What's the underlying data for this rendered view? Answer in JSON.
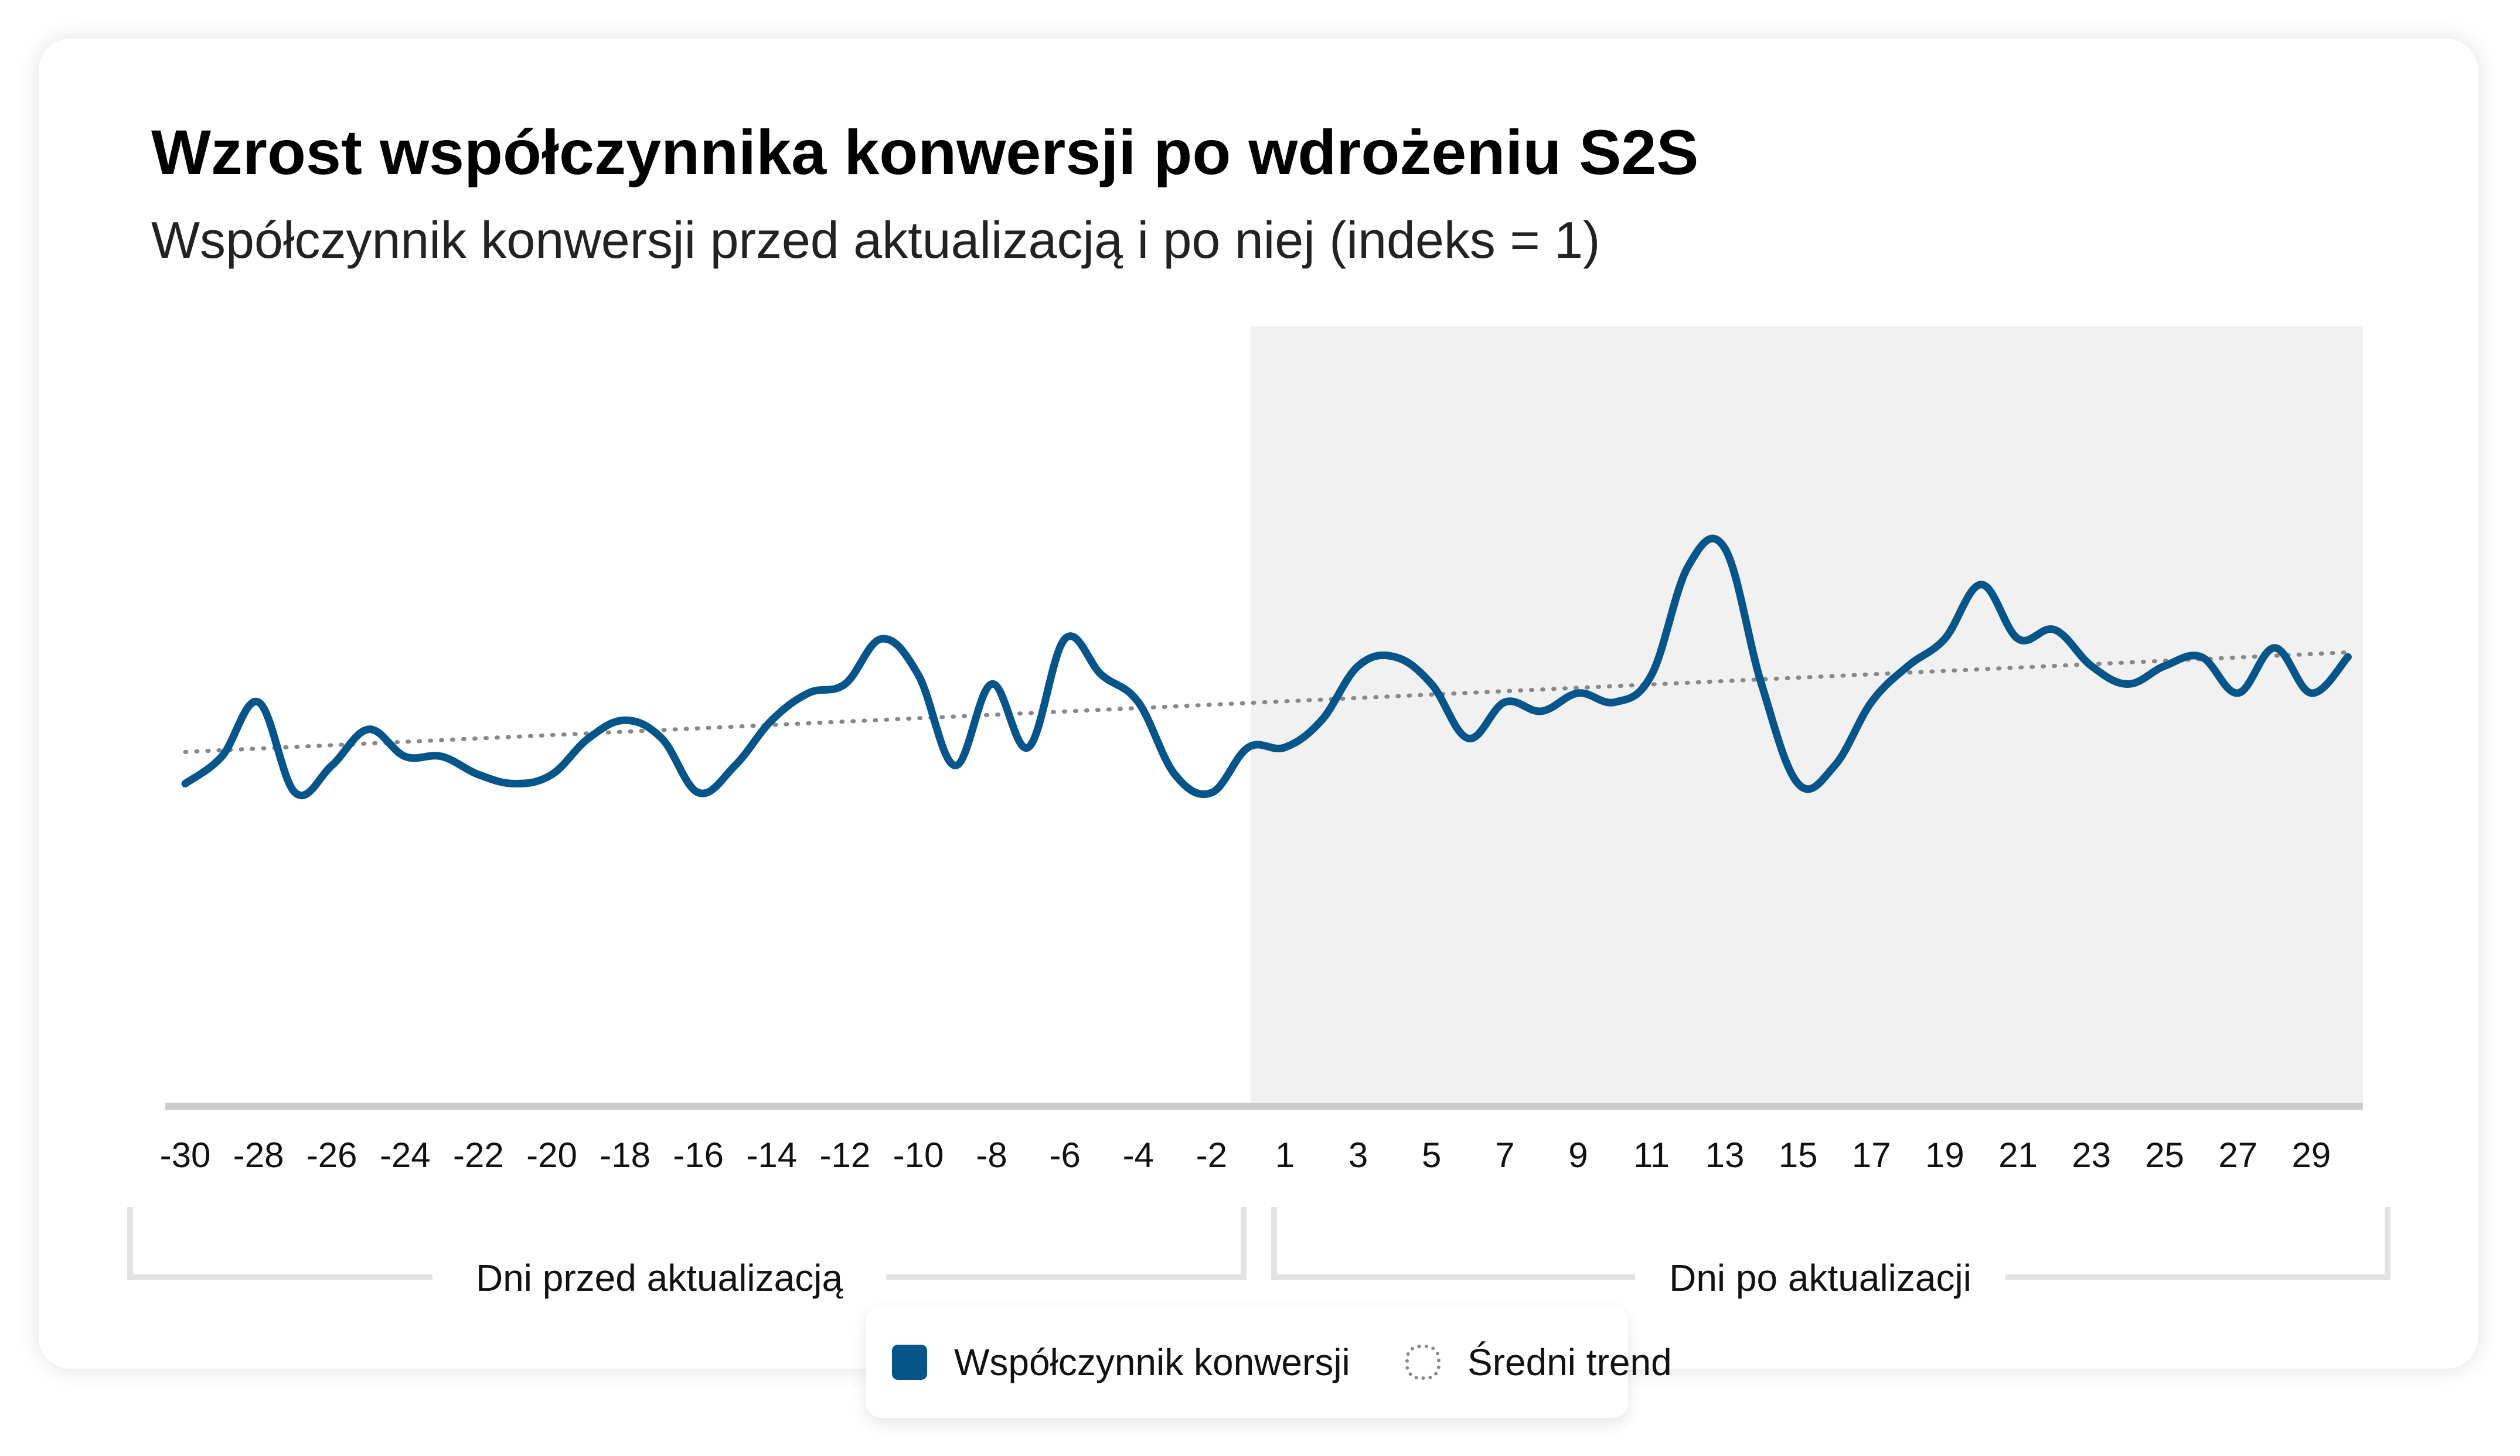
{
  "title": "Wzrost współczynnika konwersji po wdrożeniu S2S",
  "subtitle": "Współczynnik konwersji przed aktualizacją i po niej (indeks = 1)",
  "colors": {
    "line": "#05558a",
    "trend": "#888888",
    "shade": "#f1f1f1",
    "axis": "#cccccc",
    "bracket": "#e3e3e3"
  },
  "groups": {
    "before_label": "Dni przed aktualizacją",
    "after_label": "Dni po aktualizacji"
  },
  "legend": {
    "series_label": "Współczynnik konwersji",
    "trend_label": "Średni trend"
  },
  "chart_data": {
    "type": "line",
    "title": "Wzrost współczynnika konwersji po wdrożeniu S2S",
    "subtitle": "Współczynnik konwersji przed aktualizacją i po niej (indeks = 1)",
    "x": [
      -30,
      -29,
      -28,
      -27,
      -26,
      -25,
      -24,
      -23,
      -22,
      -21,
      -20,
      -19,
      -18,
      -17,
      -16,
      -15,
      -14,
      -13,
      -12,
      -11,
      -10,
      -9,
      -8,
      -7,
      -6,
      -5,
      -4,
      -3,
      -2,
      -1,
      1,
      2,
      3,
      4,
      5,
      6,
      7,
      8,
      9,
      10,
      11,
      12,
      13,
      14,
      15,
      16,
      17,
      18,
      19,
      20,
      21,
      22,
      23,
      24,
      25,
      26,
      27,
      28,
      29,
      30
    ],
    "x_tick_labels": [
      "-30",
      "-28",
      "-26",
      "-24",
      "-22",
      "-20",
      "-18",
      "-16",
      "-14",
      "-12",
      "-10",
      "-8",
      "-6",
      "-4",
      "-2",
      "1",
      "3",
      "5",
      "7",
      "9",
      "11",
      "13",
      "15",
      "17",
      "19",
      "21",
      "23",
      "25",
      "27",
      "29"
    ],
    "shaded_region": "dni 1–30 (po aktualizacji)",
    "grid": false,
    "legend_position": "bottom-center",
    "series": [
      {
        "name": "Współczynnik konwersji",
        "values": [
          0.99,
          1.02,
          1.08,
          0.98,
          1.01,
          1.05,
          1.02,
          1.02,
          1.0,
          0.99,
          1.0,
          1.04,
          1.06,
          1.04,
          0.98,
          1.01,
          1.06,
          1.09,
          1.1,
          1.15,
          1.11,
          1.01,
          1.1,
          1.03,
          1.15,
          1.11,
          1.08,
          1.0,
          0.98,
          1.03,
          1.03,
          1.06,
          1.12,
          1.13,
          1.1,
          1.04,
          1.08,
          1.07,
          1.09,
          1.08,
          1.11,
          1.23,
          1.25,
          1.1,
          0.99,
          1.01,
          1.08,
          1.12,
          1.15,
          1.21,
          1.15,
          1.16,
          1.12,
          1.1,
          1.12,
          1.13,
          1.09,
          1.14,
          1.09,
          1.13
        ]
      },
      {
        "name": "Średni trend",
        "style": "dotted",
        "values_start_end": [
          1.025,
          1.135
        ]
      }
    ]
  }
}
